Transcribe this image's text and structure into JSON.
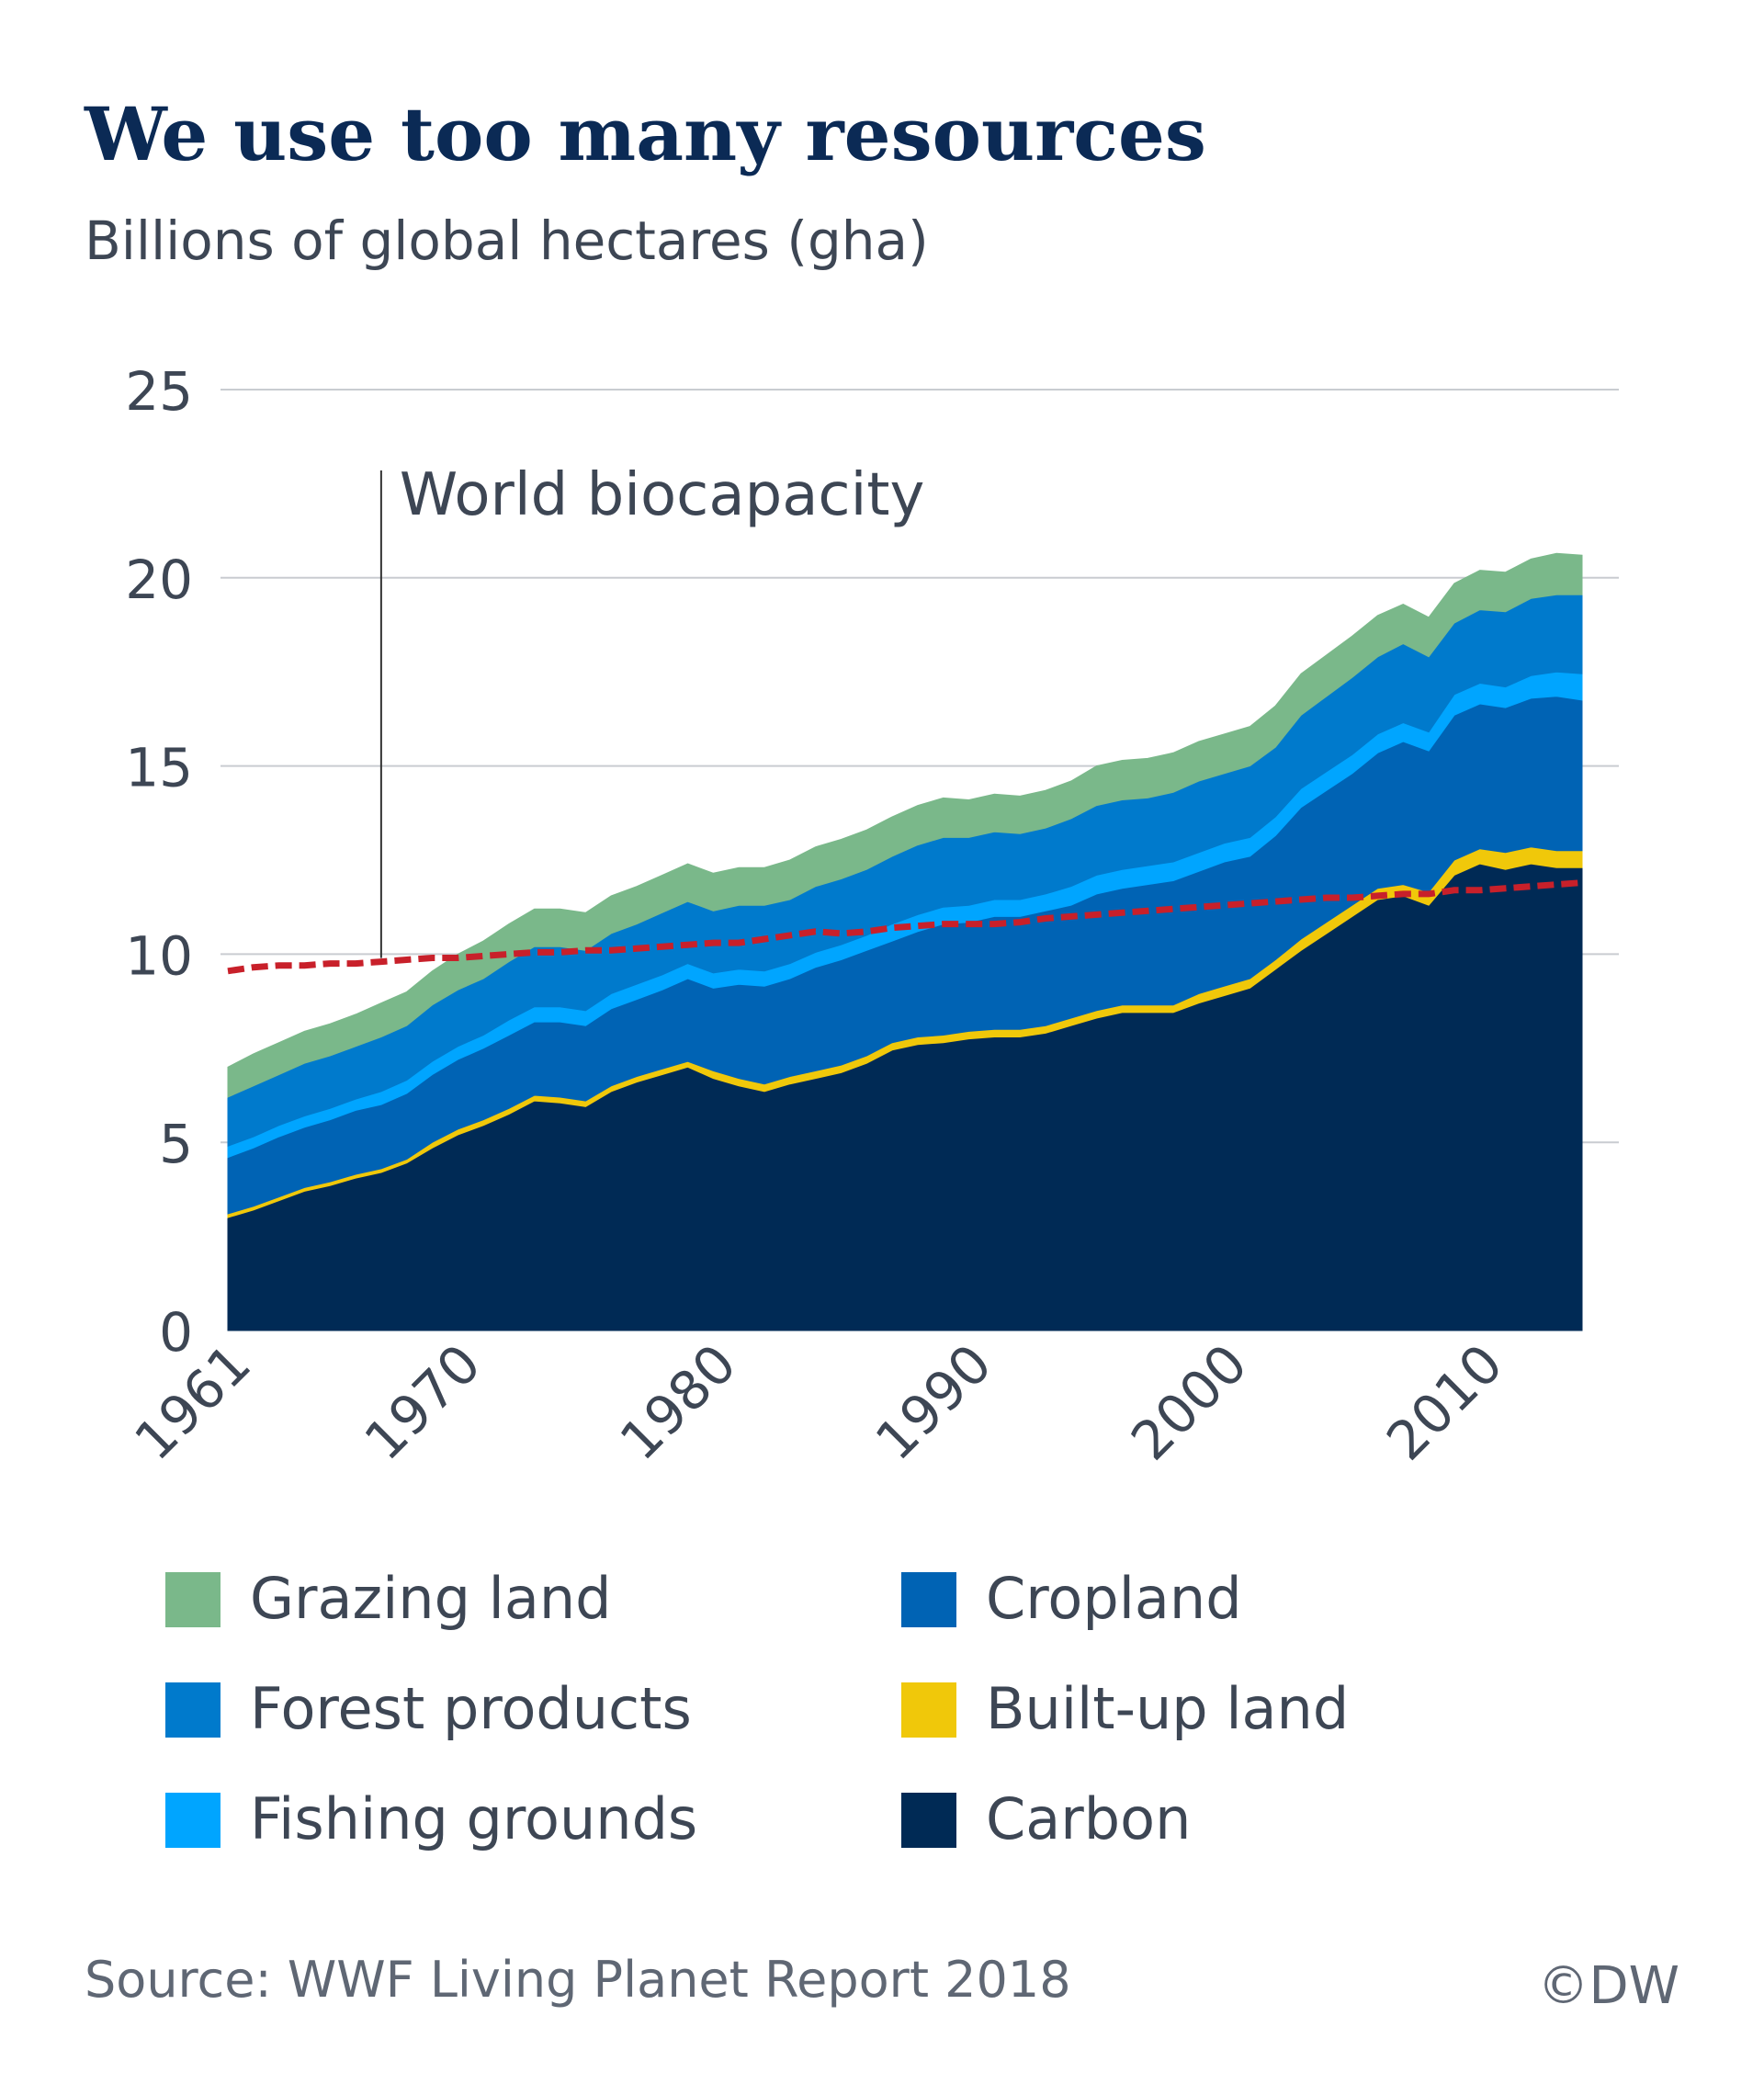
{
  "title": "We use too many resources",
  "subtitle": "Billions of global hectares (gha)",
  "source": "Source: WWF Living Planet Report 2018",
  "credit": "©DW",
  "chart_data": {
    "type": "area",
    "stacked": true,
    "x_tick_labels": [
      "1961",
      "1970",
      "1980",
      "1990",
      "2000",
      "2010"
    ],
    "y_tick_labels": [
      "0",
      "5",
      "10",
      "15",
      "20",
      "25"
    ],
    "ylim": [
      0,
      25
    ],
    "xlim": [
      1961,
      2014
    ],
    "grid": "horizontal",
    "annotation": "World biocapacity",
    "annotation_year": 1967,
    "x": [
      1961,
      1962,
      1963,
      1964,
      1965,
      1966,
      1967,
      1968,
      1969,
      1970,
      1971,
      1972,
      1973,
      1974,
      1975,
      1976,
      1977,
      1978,
      1979,
      1980,
      1981,
      1982,
      1983,
      1984,
      1985,
      1986,
      1987,
      1988,
      1989,
      1990,
      1991,
      1992,
      1993,
      1994,
      1995,
      1996,
      1997,
      1998,
      1999,
      2000,
      2001,
      2002,
      2003,
      2004,
      2005,
      2006,
      2007,
      2008,
      2009,
      2010,
      2011,
      2012,
      2013,
      2014
    ],
    "series": [
      {
        "name": "Carbon",
        "color": "#002a55",
        "values": [
          3.0,
          3.2,
          3.45,
          3.7,
          3.85,
          4.05,
          4.2,
          4.45,
          4.85,
          5.2,
          5.45,
          5.75,
          6.1,
          6.05,
          5.95,
          6.35,
          6.6,
          6.8,
          7.0,
          6.7,
          6.5,
          6.35,
          6.55,
          6.7,
          6.85,
          7.1,
          7.45,
          7.6,
          7.65,
          7.75,
          7.8,
          7.8,
          7.9,
          8.1,
          8.3,
          8.45,
          8.45,
          8.45,
          8.7,
          8.9,
          9.1,
          9.6,
          10.1,
          10.55,
          11.0,
          11.45,
          11.55,
          11.3,
          12.1,
          12.4,
          12.25,
          12.4,
          12.3,
          12.3
        ]
      },
      {
        "name": "Built-up land",
        "color": "#f0c80a",
        "values": [
          0.1,
          0.1,
          0.1,
          0.1,
          0.1,
          0.1,
          0.1,
          0.1,
          0.15,
          0.15,
          0.15,
          0.15,
          0.15,
          0.15,
          0.15,
          0.15,
          0.15,
          0.15,
          0.15,
          0.2,
          0.2,
          0.2,
          0.2,
          0.2,
          0.2,
          0.2,
          0.2,
          0.2,
          0.2,
          0.2,
          0.2,
          0.2,
          0.2,
          0.2,
          0.2,
          0.2,
          0.2,
          0.2,
          0.25,
          0.25,
          0.25,
          0.25,
          0.3,
          0.3,
          0.3,
          0.3,
          0.3,
          0.35,
          0.4,
          0.4,
          0.45,
          0.45,
          0.45,
          0.45
        ]
      },
      {
        "name": "Cropland",
        "color": "#0063b4",
        "values": [
          1.5,
          1.55,
          1.6,
          1.6,
          1.65,
          1.7,
          1.7,
          1.75,
          1.8,
          1.85,
          1.9,
          1.95,
          1.95,
          2.0,
          2.0,
          2.05,
          2.05,
          2.1,
          2.2,
          2.2,
          2.5,
          2.6,
          2.6,
          2.75,
          2.8,
          2.8,
          2.7,
          2.8,
          2.95,
          2.9,
          3.0,
          3.0,
          3.05,
          3.0,
          3.1,
          3.1,
          3.2,
          3.3,
          3.25,
          3.3,
          3.25,
          3.3,
          3.5,
          3.5,
          3.5,
          3.6,
          3.8,
          3.75,
          3.85,
          3.85,
          3.85,
          3.95,
          4.1,
          4.0
        ]
      },
      {
        "name": "Fishing grounds",
        "color": "#00a5ff",
        "values": [
          0.3,
          0.3,
          0.3,
          0.3,
          0.3,
          0.3,
          0.35,
          0.35,
          0.35,
          0.35,
          0.35,
          0.4,
          0.4,
          0.4,
          0.4,
          0.4,
          0.4,
          0.4,
          0.4,
          0.4,
          0.4,
          0.4,
          0.4,
          0.4,
          0.4,
          0.4,
          0.45,
          0.45,
          0.45,
          0.45,
          0.45,
          0.45,
          0.45,
          0.5,
          0.5,
          0.5,
          0.5,
          0.5,
          0.5,
          0.5,
          0.5,
          0.5,
          0.5,
          0.5,
          0.5,
          0.5,
          0.5,
          0.5,
          0.55,
          0.55,
          0.55,
          0.6,
          0.65,
          0.7
        ]
      },
      {
        "name": "Forest products",
        "color": "#007acc",
        "values": [
          1.3,
          1.35,
          1.35,
          1.4,
          1.4,
          1.4,
          1.45,
          1.45,
          1.5,
          1.5,
          1.5,
          1.55,
          1.6,
          1.6,
          1.6,
          1.6,
          1.6,
          1.65,
          1.65,
          1.65,
          1.7,
          1.75,
          1.7,
          1.75,
          1.75,
          1.75,
          1.8,
          1.85,
          1.85,
          1.8,
          1.8,
          1.75,
          1.75,
          1.8,
          1.85,
          1.85,
          1.8,
          1.85,
          1.9,
          1.85,
          1.9,
          1.85,
          1.95,
          2.0,
          2.05,
          2.05,
          2.1,
          2.0,
          1.9,
          1.95,
          2.0,
          2.05,
          2.05,
          2.1
        ]
      },
      {
        "name": "Grazing land",
        "color": "#7ab88a",
        "values": [
          0.8,
          0.85,
          0.85,
          0.85,
          0.85,
          0.85,
          0.9,
          0.9,
          0.9,
          0.95,
          1.0,
          1.0,
          1.0,
          1.0,
          1.0,
          1.0,
          1.0,
          1.0,
          1.0,
          1.0,
          1.0,
          1.0,
          1.05,
          1.05,
          1.05,
          1.05,
          1.05,
          1.05,
          1.05,
          1.0,
          1.0,
          1.0,
          1.0,
          1.0,
          1.05,
          1.05,
          1.05,
          1.05,
          1.05,
          1.05,
          1.05,
          1.1,
          1.1,
          1.1,
          1.1,
          1.1,
          1.05,
          1.05,
          1.05,
          1.05,
          1.05,
          1.05,
          1.1,
          1.05
        ]
      }
    ],
    "biocapacity": {
      "color": "#c8202a",
      "values": [
        9.55,
        9.65,
        9.7,
        9.7,
        9.75,
        9.75,
        9.8,
        9.85,
        9.9,
        9.9,
        9.95,
        10.0,
        10.05,
        10.05,
        10.1,
        10.1,
        10.15,
        10.2,
        10.25,
        10.3,
        10.3,
        10.4,
        10.5,
        10.6,
        10.55,
        10.6,
        10.7,
        10.75,
        10.8,
        10.8,
        10.8,
        10.85,
        10.95,
        11.0,
        11.05,
        11.1,
        11.15,
        11.2,
        11.25,
        11.3,
        11.35,
        11.4,
        11.45,
        11.5,
        11.5,
        11.55,
        11.6,
        11.6,
        11.7,
        11.7,
        11.75,
        11.8,
        11.85,
        11.9
      ]
    },
    "legend": [
      {
        "label": "Grazing land",
        "color": "#7ab88a"
      },
      {
        "label": "Cropland",
        "color": "#0063b4"
      },
      {
        "label": "Forest products",
        "color": "#007acc"
      },
      {
        "label": "Built-up land",
        "color": "#f0c80a"
      },
      {
        "label": "Fishing grounds",
        "color": "#00a5ff"
      },
      {
        "label": "Carbon",
        "color": "#002a55"
      }
    ]
  }
}
